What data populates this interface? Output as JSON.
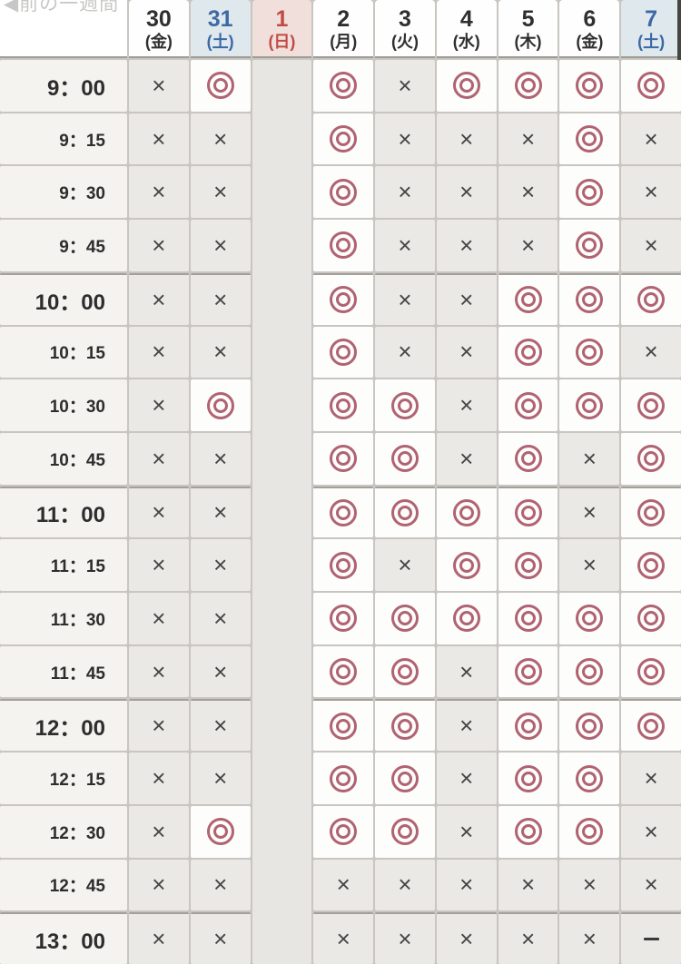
{
  "nav": {
    "prev_week_label": "◀前の一週間"
  },
  "table": {
    "columns": [
      {
        "day": "30",
        "weekday": "(金)",
        "type": "weekday"
      },
      {
        "day": "31",
        "weekday": "(土)",
        "type": "saturday"
      },
      {
        "day": "1",
        "weekday": "(日)",
        "type": "sunday",
        "closed": true
      },
      {
        "day": "2",
        "weekday": "(月)",
        "type": "weekday"
      },
      {
        "day": "3",
        "weekday": "(火)",
        "type": "weekday"
      },
      {
        "day": "4",
        "weekday": "(水)",
        "type": "weekday"
      },
      {
        "day": "5",
        "weekday": "(木)",
        "type": "weekday"
      },
      {
        "day": "6",
        "weekday": "(金)",
        "type": "weekday"
      },
      {
        "day": "7",
        "weekday": "(土)",
        "type": "saturday"
      }
    ],
    "symbols": {
      "available": "◎",
      "unavailable": "×",
      "none": "−"
    },
    "rows": [
      {
        "time": "9：00",
        "hour": true,
        "slots": [
          "×",
          "◎",
          "",
          "◎",
          "×",
          "◎",
          "◎",
          "◎",
          "◎"
        ]
      },
      {
        "time": "9：15",
        "hour": false,
        "slots": [
          "×",
          "×",
          "",
          "◎",
          "×",
          "×",
          "×",
          "◎",
          "×"
        ]
      },
      {
        "time": "9：30",
        "hour": false,
        "slots": [
          "×",
          "×",
          "",
          "◎",
          "×",
          "×",
          "×",
          "◎",
          "×"
        ]
      },
      {
        "time": "9：45",
        "hour": false,
        "slots": [
          "×",
          "×",
          "",
          "◎",
          "×",
          "×",
          "×",
          "◎",
          "×"
        ]
      },
      {
        "time": "10：00",
        "hour": true,
        "slots": [
          "×",
          "×",
          "",
          "◎",
          "×",
          "×",
          "◎",
          "◎",
          "◎"
        ]
      },
      {
        "time": "10：15",
        "hour": false,
        "slots": [
          "×",
          "×",
          "",
          "◎",
          "×",
          "×",
          "◎",
          "◎",
          "×"
        ]
      },
      {
        "time": "10：30",
        "hour": false,
        "slots": [
          "×",
          "◎",
          "",
          "◎",
          "◎",
          "×",
          "◎",
          "◎",
          "◎"
        ]
      },
      {
        "time": "10：45",
        "hour": false,
        "slots": [
          "×",
          "×",
          "",
          "◎",
          "◎",
          "×",
          "◎",
          "×",
          "◎"
        ]
      },
      {
        "time": "11：00",
        "hour": true,
        "slots": [
          "×",
          "×",
          "",
          "◎",
          "◎",
          "◎",
          "◎",
          "×",
          "◎"
        ]
      },
      {
        "time": "11：15",
        "hour": false,
        "slots": [
          "×",
          "×",
          "",
          "◎",
          "×",
          "◎",
          "◎",
          "×",
          "◎"
        ]
      },
      {
        "time": "11：30",
        "hour": false,
        "slots": [
          "×",
          "×",
          "",
          "◎",
          "◎",
          "◎",
          "◎",
          "◎",
          "◎"
        ]
      },
      {
        "time": "11：45",
        "hour": false,
        "slots": [
          "×",
          "×",
          "",
          "◎",
          "◎",
          "×",
          "◎",
          "◎",
          "◎"
        ]
      },
      {
        "time": "12：00",
        "hour": true,
        "slots": [
          "×",
          "×",
          "",
          "◎",
          "◎",
          "×",
          "◎",
          "◎",
          "◎"
        ]
      },
      {
        "time": "12：15",
        "hour": false,
        "slots": [
          "×",
          "×",
          "",
          "◎",
          "◎",
          "×",
          "◎",
          "◎",
          "×"
        ]
      },
      {
        "time": "12：30",
        "hour": false,
        "slots": [
          "×",
          "◎",
          "",
          "◎",
          "◎",
          "×",
          "◎",
          "◎",
          "×"
        ]
      },
      {
        "time": "12：45",
        "hour": false,
        "slots": [
          "×",
          "×",
          "",
          "×",
          "×",
          "×",
          "×",
          "×",
          "×"
        ]
      },
      {
        "time": "13：00",
        "hour": true,
        "slots": [
          "×",
          "×",
          "",
          "×",
          "×",
          "×",
          "×",
          "×",
          "−"
        ]
      }
    ]
  },
  "colors": {
    "available_circle": "#b06371",
    "unavailable_mark": "#454545",
    "saturday_text": "#3c68a6",
    "sunday_text": "#bf4b45",
    "saturday_bg": "#dfe8ec",
    "sunday_bg": "#f1dfdc",
    "closed_column_bg": "#e8e6e2",
    "gridline": "#c9c5c0"
  }
}
